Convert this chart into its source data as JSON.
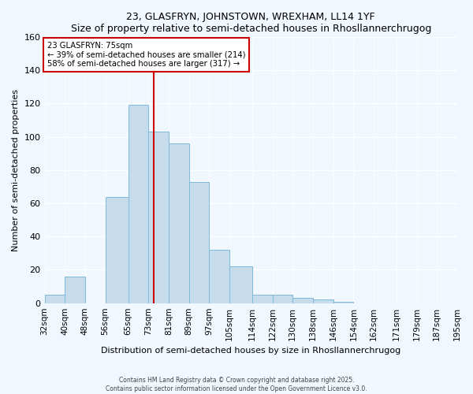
{
  "title": "23, GLASFRYN, JOHNSTOWN, WREXHAM, LL14 1YF",
  "subtitle": "Size of property relative to semi-detached houses in Rhosllannerchrugog",
  "xlabel": "Distribution of semi-detached houses by size in Rhosllannerchrugog",
  "ylabel": "Number of semi-detached properties",
  "bin_labels": [
    "32sqm",
    "40sqm",
    "48sqm",
    "56sqm",
    "65sqm",
    "73sqm",
    "81sqm",
    "89sqm",
    "97sqm",
    "105sqm",
    "114sqm",
    "122sqm",
    "130sqm",
    "138sqm",
    "146sqm",
    "154sqm",
    "162sqm",
    "171sqm",
    "179sqm",
    "187sqm",
    "195sqm"
  ],
  "bin_edges": [
    32,
    40,
    48,
    56,
    65,
    73,
    81,
    89,
    97,
    105,
    114,
    122,
    130,
    138,
    146,
    154,
    162,
    171,
    179,
    187,
    195
  ],
  "bar_values": [
    5,
    16,
    0,
    64,
    119,
    103,
    96,
    73,
    32,
    22,
    5,
    5,
    3,
    2,
    1,
    0,
    0,
    0,
    0,
    0
  ],
  "bar_color": "#c6dcec",
  "bar_edge_color": "#7fb8d8",
  "marker_value": 75,
  "marker_color": "#cc0000",
  "annotation_line1": "23 GLASFRYN: 75sqm",
  "annotation_line2": "← 39% of semi-detached houses are smaller (214)",
  "annotation_line3": "58% of semi-detached houses are larger (317) →",
  "ylim": [
    0,
    160
  ],
  "yticks": [
    0,
    20,
    40,
    60,
    80,
    100,
    120,
    140,
    160
  ],
  "footer_line1": "Contains HM Land Registry data © Crown copyright and database right 2025.",
  "footer_line2": "Contains public sector information licensed under the Open Government Licence v3.0.",
  "background_color": "#f0f7ff",
  "grid_color": "#dce8f0"
}
